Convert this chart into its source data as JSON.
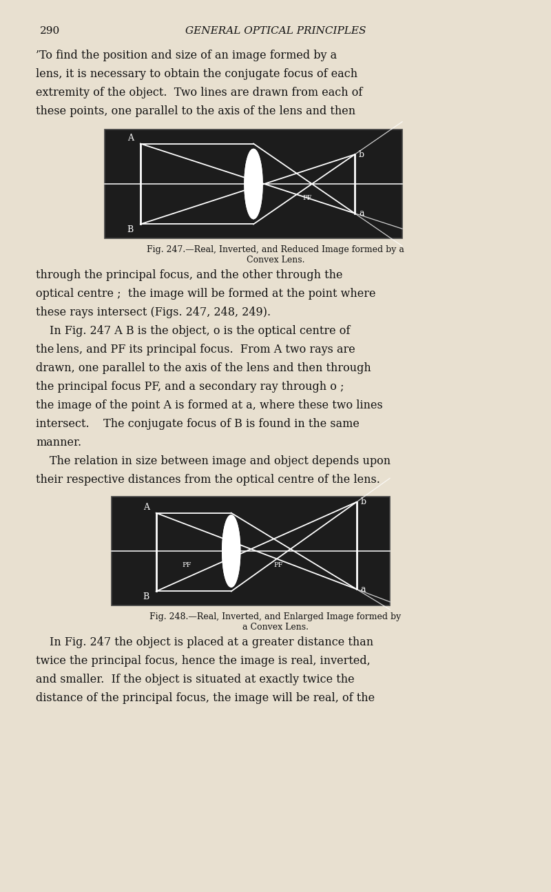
{
  "page_bg": "#e8e0d0",
  "page_width": 8.0,
  "page_height": 12.95,
  "page_number": "290",
  "header": "GENERAL OPTICAL PRINCIPLES",
  "para1_lines": [
    "’To find the position and size of an image formed by a",
    "lens, it is necessary to obtain the conjugate focus of each",
    "extremity of the object.  Two lines are drawn from each of",
    "these points, one parallel to the axis of the lens and then"
  ],
  "fig1_caption_line1": "Fig. 247.—Real, Inverted, and Reduced Image formed by a",
  "fig1_caption_line2": "Convex Lens.",
  "para2_lines": [
    "through the principal focus, and the other through the",
    "optical centre ;  the image will be formed at the point where",
    "these rays intersect (Figs. 247, 248, 249).",
    "    In Fig. 247 A B is the object, o is the optical centre of",
    "the lens, and PF its principal focus.  From A two rays are",
    "drawn, one parallel to the axis of the lens and then through",
    "the principal focus PF, and a secondary ray through o ;",
    "the image of the point A is formed at a, where these two lines",
    "intersect.    The conjugate focus of B is found in the same",
    "manner.",
    "    The relation in size between image and object depends upon",
    "their respective distances from the optical centre of the lens."
  ],
  "fig2_caption_line1": "Fig. 248.—Real, Inverted, and Enlarged Image formed by",
  "fig2_caption_line2": "a Convex Lens.",
  "para3_lines": [
    "In Fig. 247 the object is placed at a greater distance than",
    "twice the principal focus, hence the image is real, inverted,",
    "and smaller.  If the object is situated at exactly twice the",
    "distance of the principal focus, the image will be real, of the"
  ],
  "diagram_bg": "#1c1c1c",
  "diagram_line_color": "#ffffff"
}
